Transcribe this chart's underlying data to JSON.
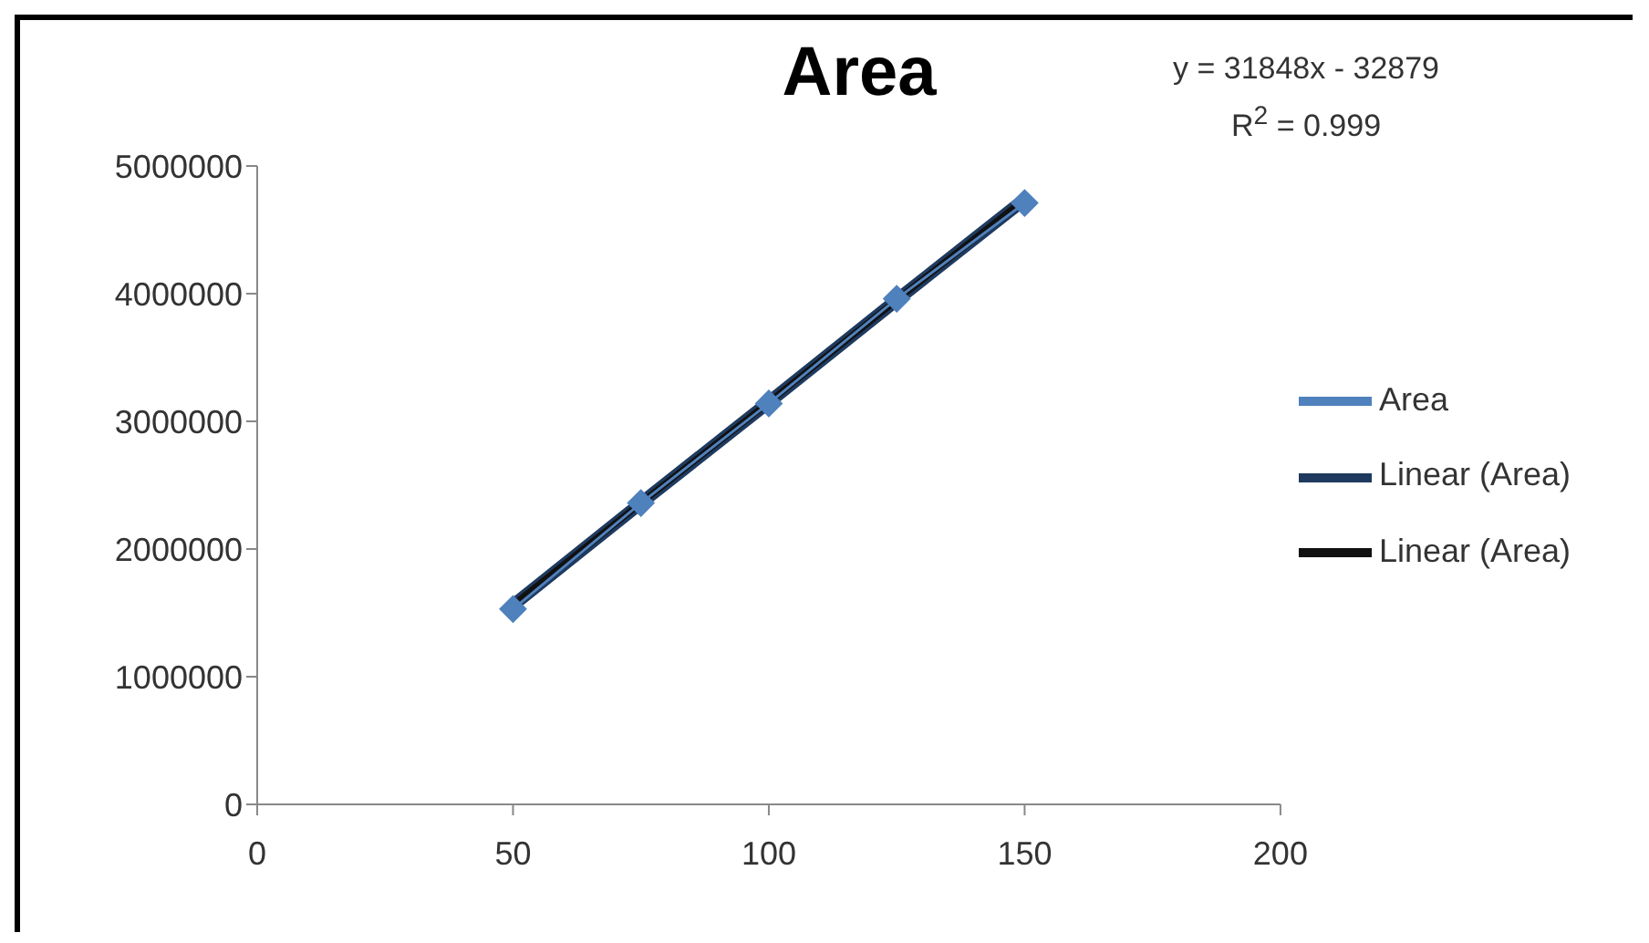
{
  "chart_data": {
    "type": "line",
    "title": "Area",
    "annotations": [
      "y = 31848x - 32879",
      "R$^{2}$ = 0.999"
    ],
    "x": [
      50,
      75,
      100,
      125,
      150
    ],
    "series": [
      {
        "name": "Area",
        "color": "#4f81bd",
        "values": [
          1530000,
          2360000,
          3140000,
          3960000,
          4710000
        ],
        "marker": "diamond"
      },
      {
        "name": "Linear (Area)",
        "type": "line",
        "color": "#1f3a5f",
        "values": [
          1560000,
          2360000,
          3150000,
          3950000,
          4740000
        ],
        "marker": "none"
      },
      {
        "name": "Linear (Area)",
        "type": "line",
        "color": "#111111",
        "values": [
          1560000,
          2360000,
          3150000,
          3950000,
          4740000
        ],
        "marker": "none"
      }
    ],
    "xlim": [
      0,
      200
    ],
    "xticks": [
      0,
      50,
      100,
      150,
      200
    ],
    "ylim": [
      0,
      5000000
    ],
    "yticks": [
      0,
      1000000,
      2000000,
      3000000,
      4000000,
      5000000
    ],
    "grid": false,
    "legend": "right"
  }
}
